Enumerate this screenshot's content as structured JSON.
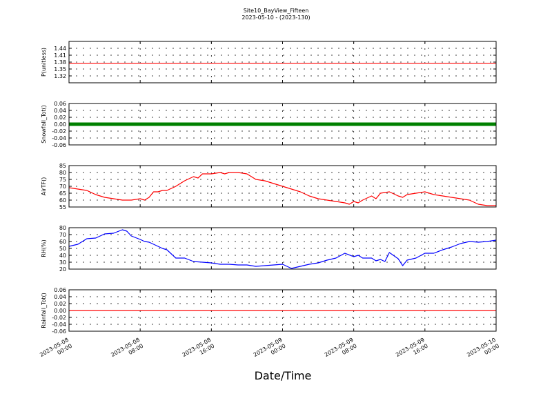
{
  "header": {
    "title": "Site10_BayView_Fifteen",
    "subtitle": "2023-05-10 - (2023-130)"
  },
  "chart_data": {
    "type": "line",
    "xlabel": "Date/Time",
    "x_ticks": [
      "2023-05-08\n00:00",
      "2023-05-08\n08:00",
      "2023-05-08\n16:00",
      "2023-05-09\n00:00",
      "2023-05-09\n08:00",
      "2023-05-09\n16:00",
      "2023-05-10\n00:00"
    ],
    "x_range_hours": [
      0,
      48
    ],
    "grid": true,
    "panels": [
      {
        "ylabel": "P(unitless)",
        "ylim": [
          1.29,
          1.47
        ],
        "yticks": [
          "1.32",
          "1.35",
          "1.38",
          "1.41",
          "1.44"
        ],
        "ytick_values": [
          1.32,
          1.35,
          1.38,
          1.41,
          1.44
        ],
        "series": [
          {
            "color": "#ff0000",
            "style": "line",
            "constant": 1.375
          }
        ]
      },
      {
        "ylabel": "Snowfall_Tot()",
        "ylim": [
          -0.06,
          0.06
        ],
        "yticks": [
          "-0.06",
          "-0.04",
          "-0.02",
          "0.00",
          "0.02",
          "0.04",
          "0.06"
        ],
        "ytick_values": [
          -0.06,
          -0.04,
          -0.02,
          0.0,
          0.02,
          0.04,
          0.06
        ],
        "series": [
          {
            "color": "#008000",
            "style": "markers",
            "constant": 0.0
          }
        ]
      },
      {
        "ylabel": "AirTF()",
        "ylim": [
          55,
          85
        ],
        "yticks": [
          "55",
          "60",
          "65",
          "70",
          "75",
          "80",
          "85"
        ],
        "ytick_values": [
          55,
          60,
          65,
          70,
          75,
          80,
          85
        ],
        "series": [
          {
            "color": "#ff0000",
            "style": "line",
            "x": [
              0,
              1,
              2,
              3,
              4,
              5,
              6,
              7,
              8,
              8.5,
              9,
              9.5,
              10,
              10.5,
              11,
              12,
              13,
              14,
              14.5,
              15,
              16,
              17,
              17.5,
              18,
              19,
              20,
              21,
              22,
              23,
              24,
              25,
              26,
              27,
              28,
              29,
              30,
              31,
              31.5,
              32,
              32.5,
              33,
              34,
              34.5,
              35,
              36,
              37,
              37.5,
              38,
              39,
              40,
              41,
              42,
              43,
              44,
              45,
              46,
              47,
              48
            ],
            "y": [
              69,
              68,
              67,
              64,
              62,
              61,
              60,
              60,
              61,
              60,
              62,
              66,
              66,
              67,
              67,
              70,
              74,
              77,
              76,
              79,
              79,
              80,
              79,
              80,
              80,
              79,
              75,
              74,
              72,
              70,
              68,
              66,
              63,
              61,
              60,
              59,
              58,
              57,
              59,
              58,
              60,
              63,
              61,
              65,
              66,
              63,
              62,
              64,
              65,
              66,
              64,
              63,
              62,
              61,
              60,
              57,
              56,
              56
            ]
          }
        ]
      },
      {
        "ylabel": "RH(%)",
        "ylim": [
          20,
          80
        ],
        "yticks": [
          "20",
          "30",
          "40",
          "50",
          "60",
          "70",
          "80"
        ],
        "ytick_values": [
          20,
          30,
          40,
          50,
          60,
          70,
          80
        ],
        "series": [
          {
            "color": "#0000ff",
            "style": "line",
            "x": [
              0,
              1,
              2,
              3,
              4,
              5,
              6,
              6.5,
              7,
              8,
              8.5,
              9,
              10,
              10.5,
              11,
              12,
              13,
              14,
              15,
              16,
              17,
              18,
              19,
              20,
              21,
              22,
              23,
              24,
              25,
              26,
              27,
              28,
              29,
              30,
              31,
              32,
              32.5,
              33,
              34,
              34.5,
              35,
              35.5,
              36,
              37,
              37.5,
              38,
              39,
              40,
              41,
              42,
              43,
              44,
              45,
              46,
              47,
              48
            ],
            "y": [
              53,
              56,
              64,
              65,
              71,
              72,
              77,
              75,
              68,
              63,
              60,
              59,
              53,
              50,
              48,
              36,
              36,
              31,
              30,
              29,
              27,
              27,
              26,
              26,
              24,
              25,
              26,
              27,
              21,
              24,
              27,
              29,
              33,
              36,
              43,
              38,
              40,
              36,
              36,
              32,
              34,
              31,
              44,
              35,
              25,
              33,
              36,
              43,
              43,
              48,
              52,
              57,
              60,
              59,
              60,
              62
            ]
          }
        ]
      },
      {
        "ylabel": "Rainfall_Tot()",
        "ylim": [
          -0.06,
          0.06
        ],
        "yticks": [
          "-0.06",
          "-0.04",
          "-0.02",
          "0.00",
          "0.02",
          "0.04",
          "0.06"
        ],
        "ytick_values": [
          -0.06,
          -0.04,
          -0.02,
          0.0,
          0.02,
          0.04,
          0.06
        ],
        "series": [
          {
            "color": "#ff0000",
            "style": "line",
            "constant": 0.0
          }
        ]
      }
    ]
  }
}
